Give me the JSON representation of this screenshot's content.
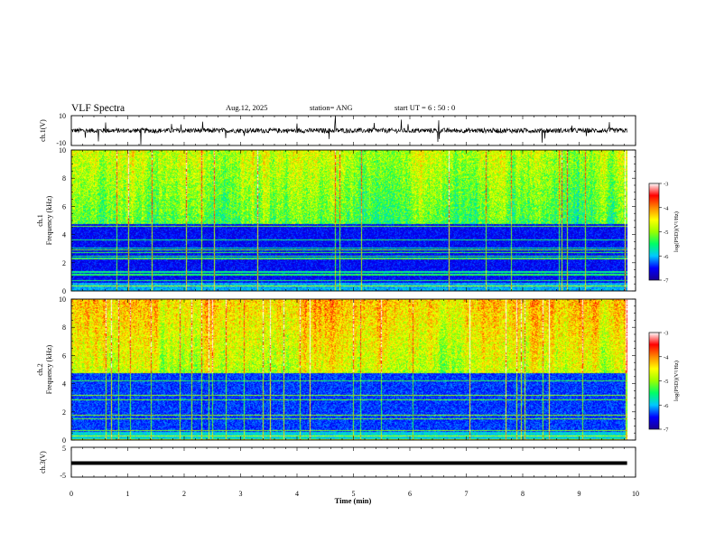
{
  "header": {
    "title": "VLF Spectra",
    "date": "Aug.12, 2025",
    "station": "station= ANG",
    "start": "start  UT  =   6 : 50 : 0"
  },
  "colorscale": {
    "stops": [
      "#1a0090",
      "#0000ff",
      "#00c8ff",
      "#00ff66",
      "#99ff00",
      "#ffff00",
      "#ff8800",
      "#ff0000",
      "#ffffff"
    ],
    "ticks": [
      "-3",
      "-4",
      "-5",
      "-6",
      "-7"
    ],
    "label": "log(PSD)(V²/Hz)"
  },
  "chart_data": [
    {
      "type": "line",
      "panel": "ch1-waveform",
      "ylabel": "ch.1(V)",
      "ylim": [
        -10,
        10
      ],
      "yticks": [
        "10",
        "-10"
      ],
      "x_range_min": [
        0,
        9.85
      ],
      "baseline": 0
    },
    {
      "type": "heatmap",
      "panel": "ch1-spectrogram",
      "ylabel_line1": "ch.1",
      "ylabel_line2": "Frequency (kHz)",
      "ylim": [
        0,
        10
      ],
      "yticks": [
        "0",
        "2",
        "4",
        "6",
        "8",
        "10"
      ],
      "x_range_min": [
        0,
        9.85
      ],
      "log_psd_range": [
        -7,
        -3
      ]
    },
    {
      "type": "heatmap",
      "panel": "ch2-spectrogram",
      "ylabel_line1": "ch.2",
      "ylabel_line2": "Frequency (kHz)",
      "ylim": [
        0,
        10
      ],
      "yticks": [
        "0",
        "2",
        "4",
        "6",
        "8",
        "10"
      ],
      "x_range_min": [
        0,
        9.85
      ],
      "log_psd_range": [
        -7,
        -3
      ]
    },
    {
      "type": "line",
      "panel": "ch3-waveform",
      "ylabel": "ch.3(V)",
      "ylim": [
        -5,
        5
      ],
      "yticks": [
        "5",
        "-5"
      ],
      "x_range_min": [
        0,
        9.85
      ],
      "baseline": -0.3
    }
  ],
  "xaxis": {
    "label": "Time (min)",
    "ticks": [
      "0",
      "1",
      "2",
      "3",
      "4",
      "5",
      "6",
      "7",
      "8",
      "9",
      "10"
    ]
  }
}
